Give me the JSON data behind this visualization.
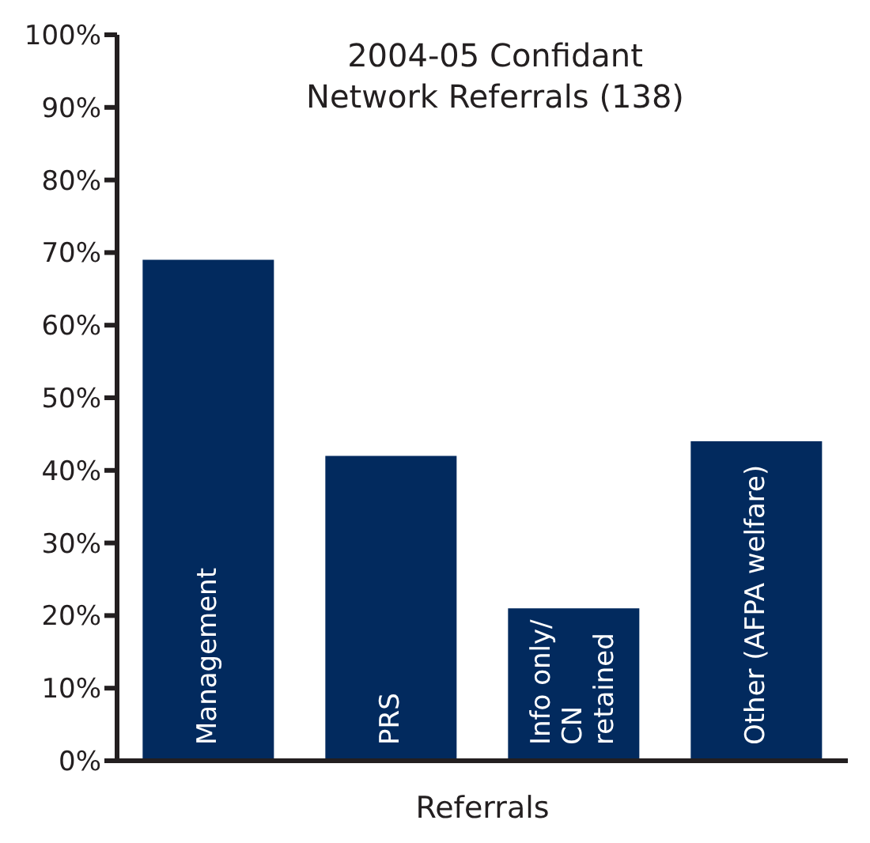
{
  "chart_data": {
    "type": "bar",
    "title": "2004-05 Confidant Network Referrals (138)",
    "xlabel": "Referrals",
    "categories": [
      "Management",
      "PRS",
      "Info only/\nCN\nretained",
      "Other (AFPA welfare)"
    ],
    "values": [
      69,
      42,
      21,
      44
    ],
    "color": "#022a5e",
    "ylim": [
      0,
      100
    ],
    "yticks": [
      {
        "value": 0,
        "label": "0%"
      },
      {
        "value": 10,
        "label": "10%"
      },
      {
        "value": 20,
        "label": "20%"
      },
      {
        "value": 30,
        "label": "30%"
      },
      {
        "value": 40,
        "label": "40%"
      },
      {
        "value": 50,
        "label": "50%"
      },
      {
        "value": 60,
        "label": "60%"
      },
      {
        "value": 70,
        "label": "70%"
      },
      {
        "value": 80,
        "label": "80%"
      },
      {
        "value": 90,
        "label": "90%"
      },
      {
        "value": 100,
        "label": "100%"
      }
    ],
    "grid": false
  }
}
